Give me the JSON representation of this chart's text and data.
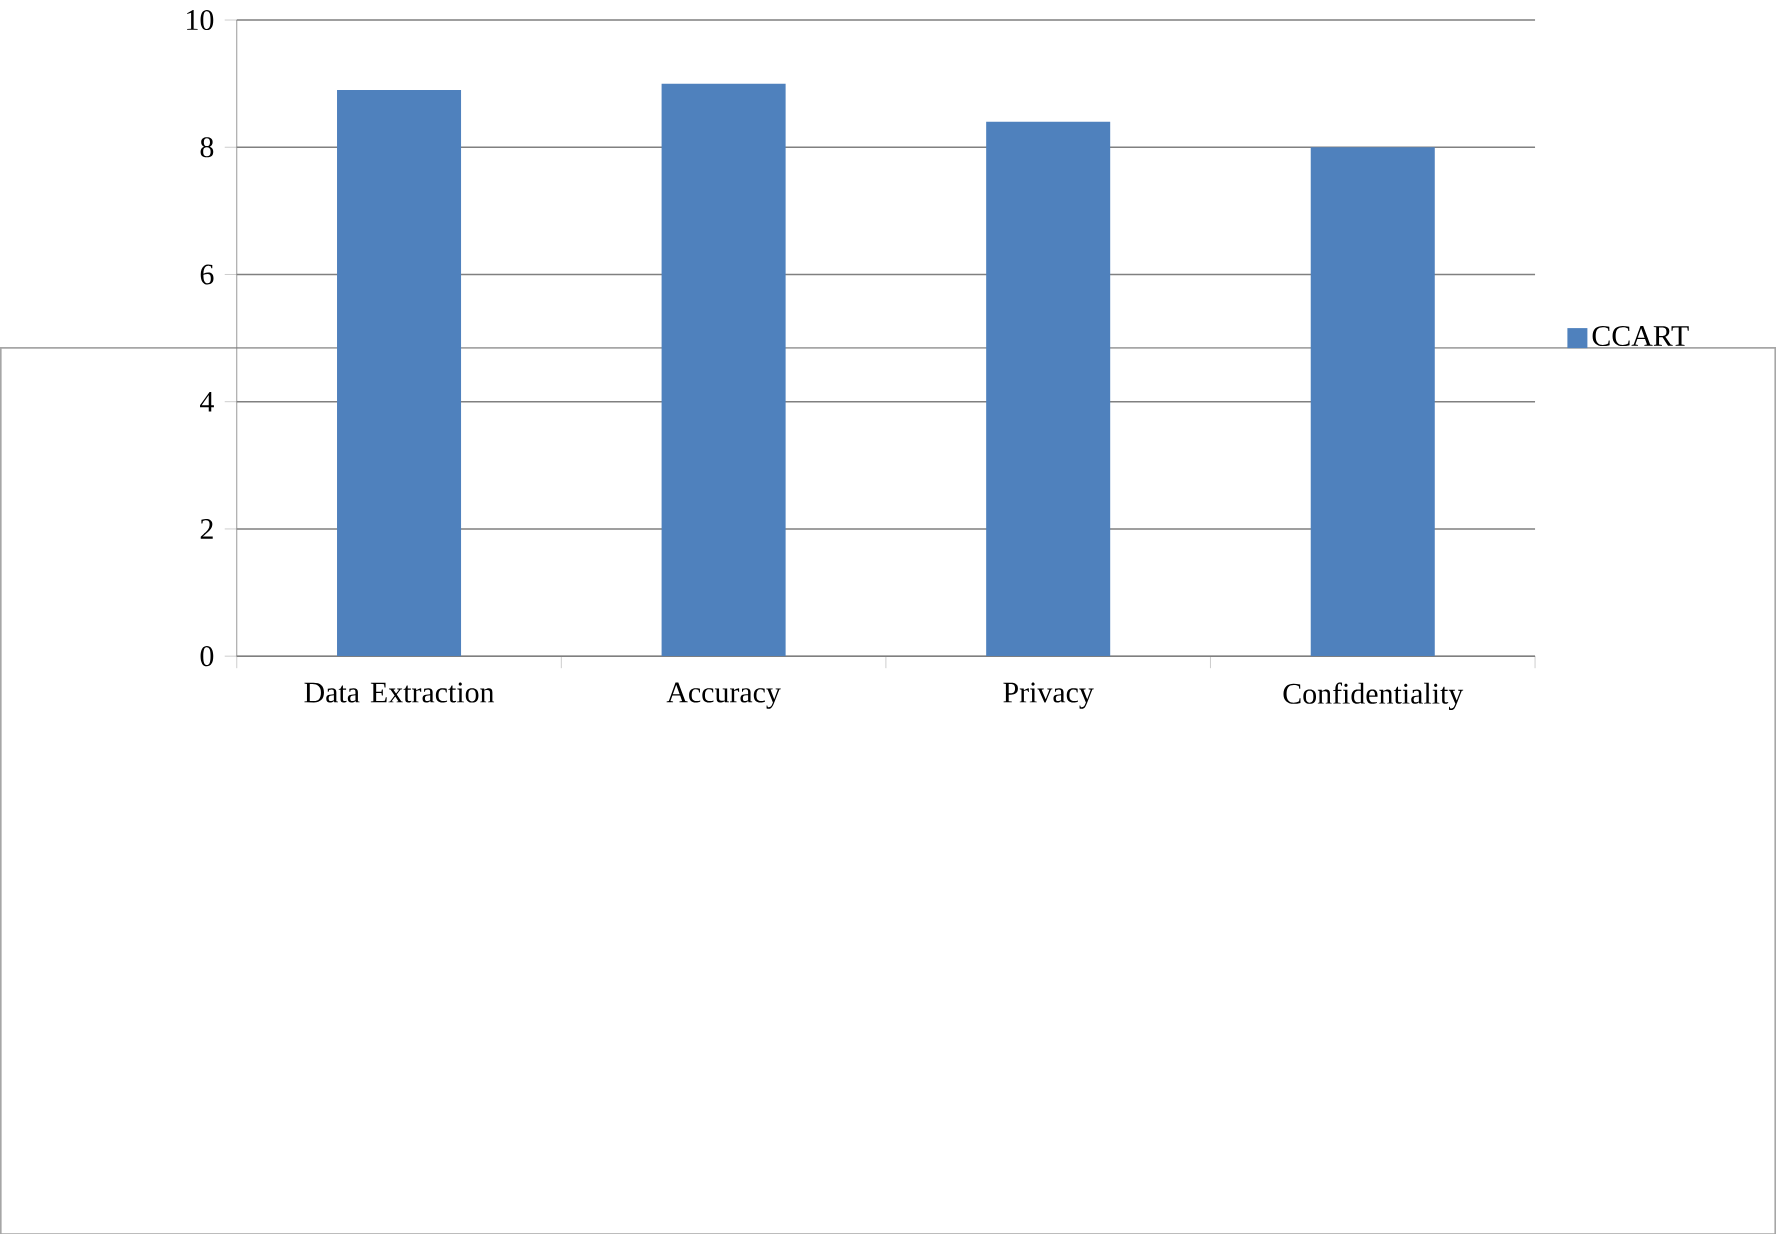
{
  "chart_data": {
    "type": "bar",
    "categories": [
      "Data Extraction",
      "Accuracy",
      "Privacy",
      "Confidentiality"
    ],
    "series": [
      {
        "name": "CCART",
        "color": "#4f81bd",
        "values": [
          8.9,
          9.0,
          8.4,
          8.0
        ]
      }
    ],
    "ylim": [
      0,
      10
    ],
    "yticks": [
      0,
      2,
      4,
      6,
      8,
      10
    ],
    "grid": "y",
    "legend": "right"
  }
}
